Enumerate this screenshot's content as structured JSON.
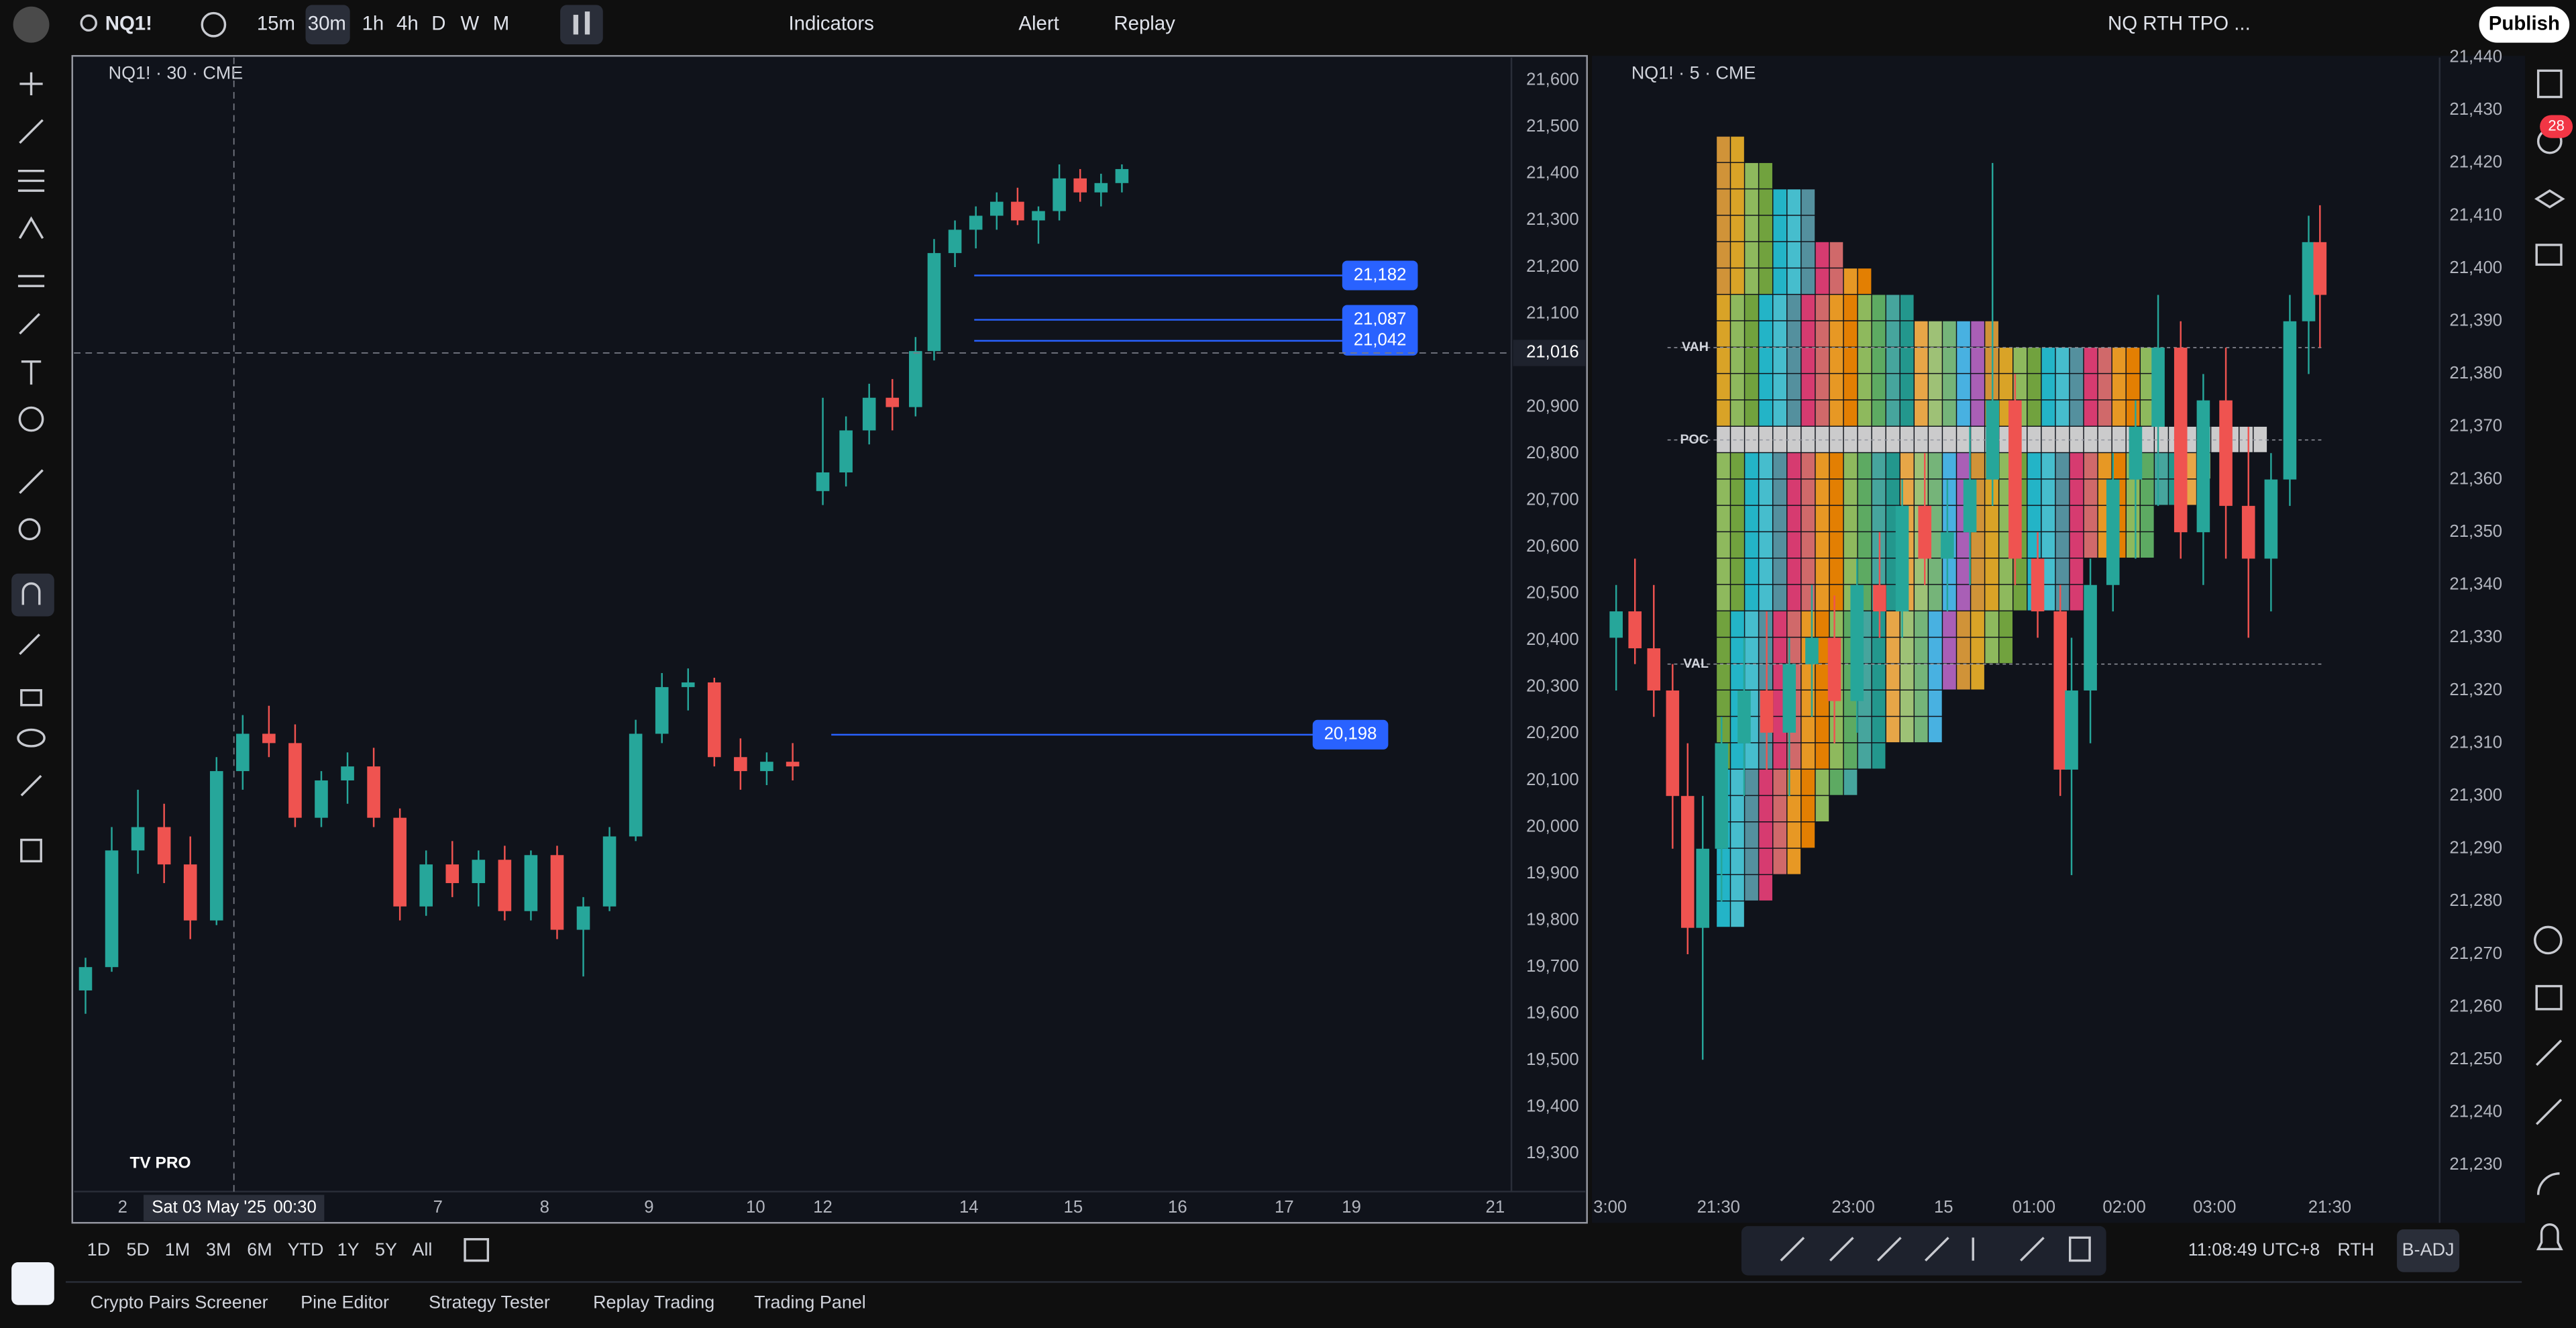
{
  "toolbar": {
    "symbol": "NQ1!",
    "intervals": [
      "15m",
      "30m",
      "1h",
      "4h",
      "D",
      "W",
      "M"
    ],
    "indicators": "Indicators",
    "alert": "Alert",
    "replay": "Replay",
    "layout": "NQ RTH TPO ...",
    "publish": "Publish"
  },
  "alerts_badge": "28",
  "chart_data": [
    {
      "type": "candlestick",
      "legend": "NQ1! · 30 · CME",
      "up_color": "#26a69a",
      "down_color": "#ef5350",
      "x": [
        0.5,
        1.63,
        2.76,
        3.89,
        5.02,
        6.15,
        7.28,
        8.41,
        9.54,
        10.67,
        11.8,
        12.93,
        14.06,
        15.19,
        16.32,
        17.45,
        18.58,
        19.71,
        20.84,
        21.97,
        23.1,
        24.23,
        25.36,
        26.49,
        27.62,
        28.75,
        29.88,
        31.0,
        32.3,
        33.3,
        34.3,
        35.3,
        36.3,
        37.1,
        38.0,
        38.9,
        39.8,
        40.7,
        41.6,
        42.5,
        43.4,
        44.3,
        45.2
      ],
      "open": [
        19650,
        19700,
        19950,
        20000,
        19920,
        19800,
        20120,
        20200,
        20180,
        20020,
        20100,
        20130,
        20020,
        19830,
        19920,
        19880,
        19930,
        19820,
        19940,
        19780,
        19830,
        19980,
        20200,
        20300,
        20310,
        20150,
        20120,
        20140,
        20720,
        20760,
        20850,
        20920,
        20900,
        21020,
        21230,
        21280,
        21310,
        21340,
        21300,
        21320,
        21390,
        21360,
        21380
      ],
      "high": [
        19720,
        20000,
        20080,
        20050,
        19980,
        20150,
        20240,
        20260,
        20220,
        20120,
        20160,
        20170,
        20040,
        19950,
        19970,
        19950,
        19960,
        19950,
        19960,
        19850,
        20000,
        20230,
        20330,
        20340,
        20320,
        20190,
        20160,
        20180,
        20920,
        20880,
        20950,
        20960,
        21050,
        21260,
        21300,
        21330,
        21360,
        21370,
        21330,
        21420,
        21410,
        21400,
        21420
      ],
      "low": [
        19600,
        19690,
        19900,
        19880,
        19760,
        19790,
        20080,
        20150,
        20000,
        20000,
        20050,
        20000,
        19800,
        19810,
        19850,
        19830,
        19800,
        19800,
        19760,
        19680,
        19820,
        19970,
        20180,
        20250,
        20130,
        20080,
        20090,
        20100,
        20690,
        20730,
        20820,
        20850,
        20880,
        21000,
        21200,
        21240,
        21280,
        21290,
        21250,
        21300,
        21340,
        21330,
        21360
      ],
      "close": [
        19700,
        19950,
        20000,
        19920,
        19800,
        20120,
        20200,
        20180,
        20020,
        20100,
        20130,
        20020,
        19830,
        19920,
        19880,
        19930,
        19820,
        19940,
        19780,
        19830,
        19980,
        20200,
        20300,
        20310,
        20150,
        20120,
        20140,
        20130,
        20760,
        20850,
        20920,
        20900,
        21020,
        21230,
        21280,
        21310,
        21340,
        21300,
        21320,
        21390,
        21360,
        21380,
        21410
      ],
      "xlim": [
        0,
        62
      ],
      "xticks": [
        {
          "value": 2.1,
          "label": "2"
        },
        {
          "value": 15.7,
          "label": "7"
        },
        {
          "value": 20.3,
          "label": "8"
        },
        {
          "value": 24.8,
          "label": "9"
        },
        {
          "value": 29.4,
          "label": "10"
        },
        {
          "value": 32.3,
          "label": "12"
        },
        {
          "value": 38.6,
          "label": "14"
        },
        {
          "value": 43.1,
          "label": "15"
        },
        {
          "value": 47.6,
          "label": "16"
        },
        {
          "value": 52.2,
          "label": "17"
        },
        {
          "value": 55.1,
          "label": "19"
        },
        {
          "value": 61.3,
          "label": "21"
        }
      ],
      "ylim": [
        19219,
        21649
      ],
      "yticks": [
        {
          "value": 19300,
          "label": "19,300"
        },
        {
          "value": 19400,
          "label": "19,400"
        },
        {
          "value": 19500,
          "label": "19,500"
        },
        {
          "value": 19600,
          "label": "19,600"
        },
        {
          "value": 19700,
          "label": "19,700"
        },
        {
          "value": 19800,
          "label": "19,800"
        },
        {
          "value": 19900,
          "label": "19,900"
        },
        {
          "value": 20000,
          "label": "20,000"
        },
        {
          "value": 20100,
          "label": "20,100"
        },
        {
          "value": 20200,
          "label": "20,200"
        },
        {
          "value": 20300,
          "label": "20,300"
        },
        {
          "value": 20400,
          "label": "20,400"
        },
        {
          "value": 20500,
          "label": "20,500"
        },
        {
          "value": 20600,
          "label": "20,600"
        },
        {
          "value": 20700,
          "label": "20,700"
        },
        {
          "value": 20800,
          "label": "20,800"
        },
        {
          "value": 20900,
          "label": "20,900"
        },
        {
          "value": 21100,
          "label": "21,100"
        },
        {
          "value": 21200,
          "label": "21,200"
        },
        {
          "value": 21300,
          "label": "21,300"
        },
        {
          "value": 21400,
          "label": "21,400"
        },
        {
          "value": 21500,
          "label": "21,500"
        },
        {
          "value": 21600,
          "label": "21,600"
        }
      ],
      "crosshair": {
        "x": 6.9,
        "price": {
          "value": 21016,
          "label": "21,016"
        },
        "date": "Sat 03 May '25",
        "time": "00:30"
      },
      "price_labels": [
        {
          "value": 21182,
          "label": "21,182"
        },
        {
          "value": 21087,
          "label": "21,087"
        },
        {
          "value": 21042,
          "label": "21,042"
        },
        {
          "value": 20198,
          "label": "20,198"
        }
      ],
      "label_color": "#2962ff"
    },
    {
      "type": "candlestick",
      "legend": "NQ1! · 5 · CME",
      "up_color": "#26a69a",
      "down_color": "#ef5350",
      "x": [
        3,
        5.5,
        8,
        10.5,
        12.5,
        14.5,
        17,
        20,
        23,
        26,
        29,
        32,
        35,
        38,
        41,
        44,
        47,
        50,
        53,
        56,
        59,
        62,
        63.5,
        66,
        69,
        72,
        75,
        78,
        81,
        84,
        87,
        90,
        92.5,
        95,
        96.5
      ],
      "open": [
        21330,
        21335,
        21328,
        21320,
        21300,
        21275,
        21290,
        21310,
        21320,
        21312,
        21325,
        21330,
        21318,
        21340,
        21335,
        21355,
        21345,
        21350,
        21360,
        21375,
        21345,
        21335,
        21305,
        21320,
        21340,
        21360,
        21370,
        21385,
        21350,
        21375,
        21355,
        21345,
        21360,
        21390,
        21405
      ],
      "high": [
        21340,
        21345,
        21340,
        21325,
        21310,
        21300,
        21315,
        21330,
        21335,
        21330,
        21340,
        21338,
        21345,
        21350,
        21360,
        21365,
        21360,
        21370,
        21420,
        21380,
        21350,
        21340,
        21330,
        21345,
        21365,
        21375,
        21395,
        21390,
        21380,
        21385,
        21370,
        21365,
        21395,
        21410,
        21412
      ],
      "low": [
        21320,
        21325,
        21315,
        21290,
        21270,
        21250,
        21280,
        21300,
        21305,
        21300,
        21315,
        21310,
        21312,
        21330,
        21330,
        21340,
        21335,
        21340,
        21355,
        21340,
        21330,
        21300,
        21285,
        21310,
        21335,
        21345,
        21355,
        21345,
        21340,
        21345,
        21330,
        21335,
        21355,
        21380,
        21385
      ],
      "close": [
        21335,
        21328,
        21320,
        21300,
        21275,
        21290,
        21310,
        21320,
        21312,
        21325,
        21330,
        21318,
        21340,
        21335,
        21355,
        21345,
        21350,
        21360,
        21375,
        21345,
        21335,
        21305,
        21320,
        21340,
        21360,
        21370,
        21385,
        21350,
        21375,
        21355,
        21345,
        21360,
        21390,
        21405,
        21395
      ],
      "xlim": [
        0,
        112.4
      ],
      "xticks": [
        {
          "value": 2.2,
          "label": "3:00"
        },
        {
          "value": 16.6,
          "label": "21:30"
        },
        {
          "value": 34.5,
          "label": "23:00"
        },
        {
          "value": 46.5,
          "label": "15"
        },
        {
          "value": 58.5,
          "label": "01:00"
        },
        {
          "value": 70.5,
          "label": "02:00"
        },
        {
          "value": 82.5,
          "label": "03:00"
        },
        {
          "value": 97.8,
          "label": "21:30"
        }
      ],
      "ylim": [
        21225,
        21440
      ],
      "yticks": [
        {
          "value": 21230,
          "label": "21,230"
        },
        {
          "value": 21240,
          "label": "21,240"
        },
        {
          "value": 21250,
          "label": "21,250"
        },
        {
          "value": 21260,
          "label": "21,260"
        },
        {
          "value": 21270,
          "label": "21,270"
        },
        {
          "value": 21280,
          "label": "21,280"
        },
        {
          "value": 21290,
          "label": "21,290"
        },
        {
          "value": 21300,
          "label": "21,300"
        },
        {
          "value": 21310,
          "label": "21,310"
        },
        {
          "value": 21320,
          "label": "21,320"
        },
        {
          "value": 21330,
          "label": "21,330"
        },
        {
          "value": 21340,
          "label": "21,340"
        },
        {
          "value": 21350,
          "label": "21,350"
        },
        {
          "value": 21360,
          "label": "21,360"
        },
        {
          "value": 21370,
          "label": "21,370"
        },
        {
          "value": 21380,
          "label": "21,380"
        },
        {
          "value": 21390,
          "label": "21,390"
        },
        {
          "value": 21400,
          "label": "21,400"
        },
        {
          "value": 21410,
          "label": "21,410"
        },
        {
          "value": 21420,
          "label": "21,420"
        },
        {
          "value": 21430,
          "label": "21,430"
        },
        {
          "value": 21440,
          "label": "21,440"
        }
      ],
      "tpo": {
        "rows": [
          {
            "price": 21420,
            "count": 2
          },
          {
            "price": 21415,
            "count": 4
          },
          {
            "price": 21410,
            "count": 7
          },
          {
            "price": 21405,
            "count": 7
          },
          {
            "price": 21400,
            "count": 9
          },
          {
            "price": 21395,
            "count": 11
          },
          {
            "price": 21390,
            "count": 14
          },
          {
            "price": 21385,
            "count": 20
          },
          {
            "price": 21380,
            "count": 31
          },
          {
            "price": 21375,
            "count": 31
          },
          {
            "price": 21370,
            "count": 31
          },
          {
            "price": 21365,
            "count": 39
          },
          {
            "price": 21360,
            "count": 35
          },
          {
            "price": 21355,
            "count": 34
          },
          {
            "price": 21350,
            "count": 31
          },
          {
            "price": 21345,
            "count": 31
          },
          {
            "price": 21340,
            "count": 26
          },
          {
            "price": 21335,
            "count": 26
          },
          {
            "price": 21330,
            "count": 21
          },
          {
            "price": 21325,
            "count": 21
          },
          {
            "price": 21320,
            "count": 19
          },
          {
            "price": 21315,
            "count": 16
          },
          {
            "price": 21310,
            "count": 16
          },
          {
            "price": 21305,
            "count": 12
          },
          {
            "price": 21300,
            "count": 10
          },
          {
            "price": 21295,
            "count": 8
          },
          {
            "price": 21290,
            "count": 7
          },
          {
            "price": 21285,
            "count": 6
          },
          {
            "price": 21280,
            "count": 4
          },
          {
            "price": 21275,
            "count": 2
          }
        ],
        "palette": [
          "#e6a23c",
          "#f0b429",
          "#9ccc65",
          "#7cb342",
          "#26c6da",
          "#4dd0e1",
          "#5c9ead",
          "#ec407a",
          "#e57373",
          "#ffa726",
          "#fb8c00",
          "#9ccc65",
          "#66bb6a",
          "#4db6ac",
          "#26a69a",
          "#ffb74d",
          "#aed581",
          "#81c784",
          "#4fc3f7",
          "#ba68c8"
        ],
        "poc_color": "#e0e0e0",
        "levels": [
          {
            "label": "VAH",
            "value": 21385
          },
          {
            "label": "POC",
            "value": 21367.5
          },
          {
            "label": "VAL",
            "value": 21325
          }
        ]
      }
    }
  ],
  "bottom_bar": {
    "ranges": [
      "1D",
      "5D",
      "1M",
      "3M",
      "6M",
      "YTD",
      "1Y",
      "5Y",
      "All"
    ],
    "clock": "11:08:49 UTC+8",
    "session": "RTH",
    "adjust": "B-ADJ"
  },
  "tabs": [
    "Crypto Pairs Screener",
    "Pine Editor",
    "Strategy Tester",
    "Replay Trading",
    "Trading Panel"
  ]
}
